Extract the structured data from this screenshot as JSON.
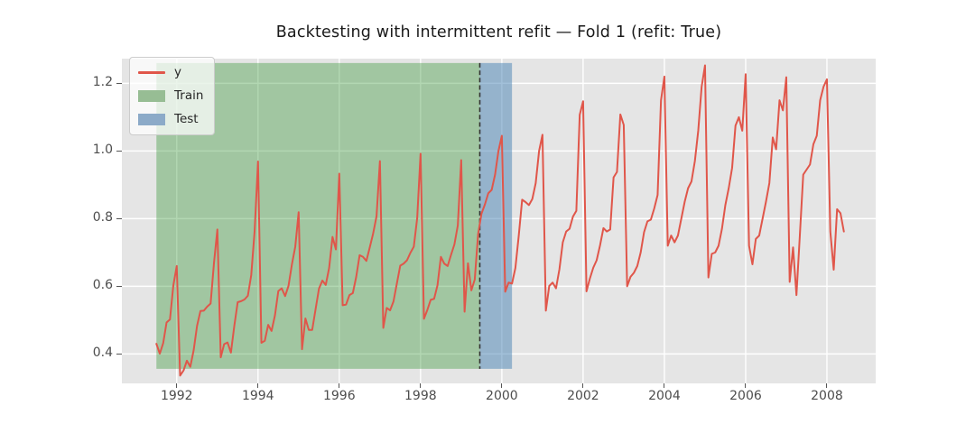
{
  "chart_data": {
    "type": "line",
    "title": "Backtesting with intermittent refit — Fold 1 (refit: True)",
    "x_axis": {
      "tick_labels": [
        "1992",
        "1994",
        "1996",
        "1998",
        "2000",
        "2002",
        "2004",
        "2006",
        "2008"
      ],
      "lim": [
        1990.65,
        2009.2
      ],
      "unit": "year"
    },
    "y_axis": {
      "tick_labels": [
        "0.4",
        "0.6",
        "0.8",
        "1.0",
        "1.2"
      ],
      "lim": [
        0.313,
        1.273
      ]
    },
    "grid": true,
    "legend_position": "upper-left",
    "series": [
      {
        "name": "y",
        "color": "#e0564a",
        "start": "1991-07",
        "freq": "monthly",
        "values": [
          0.43,
          0.401,
          0.432,
          0.493,
          0.502,
          0.603,
          0.66,
          0.336,
          0.351,
          0.38,
          0.362,
          0.411,
          0.483,
          0.527,
          0.528,
          0.54,
          0.549,
          0.669,
          0.768,
          0.39,
          0.429,
          0.434,
          0.404,
          0.483,
          0.553,
          0.556,
          0.561,
          0.572,
          0.633,
          0.763,
          0.969,
          0.433,
          0.439,
          0.486,
          0.468,
          0.514,
          0.586,
          0.594,
          0.571,
          0.601,
          0.664,
          0.717,
          0.819,
          0.414,
          0.505,
          0.471,
          0.471,
          0.532,
          0.593,
          0.617,
          0.604,
          0.654,
          0.746,
          0.709,
          0.933,
          0.544,
          0.546,
          0.574,
          0.58,
          0.628,
          0.692,
          0.687,
          0.675,
          0.715,
          0.756,
          0.807,
          0.97,
          0.477,
          0.536,
          0.529,
          0.555,
          0.608,
          0.661,
          0.667,
          0.677,
          0.699,
          0.717,
          0.801,
          0.992,
          0.504,
          0.53,
          0.56,
          0.563,
          0.603,
          0.687,
          0.667,
          0.66,
          0.693,
          0.724,
          0.78,
          0.973,
          0.525,
          0.668,
          0.588,
          0.62,
          0.755,
          0.815,
          0.842,
          0.875,
          0.885,
          0.93,
          1.0,
          1.045,
          0.584,
          0.611,
          0.608,
          0.654,
          0.75,
          0.856,
          0.849,
          0.84,
          0.858,
          0.905,
          1.0,
          1.048,
          0.528,
          0.601,
          0.611,
          0.594,
          0.65,
          0.73,
          0.762,
          0.77,
          0.806,
          0.823,
          1.107,
          1.147,
          0.585,
          0.623,
          0.655,
          0.677,
          0.721,
          0.772,
          0.762,
          0.768,
          0.922,
          0.938,
          1.108,
          1.077,
          0.6,
          0.628,
          0.64,
          0.66,
          0.7,
          0.76,
          0.792,
          0.797,
          0.83,
          0.87,
          1.15,
          1.22,
          0.72,
          0.75,
          0.73,
          0.75,
          0.8,
          0.85,
          0.89,
          0.91,
          0.97,
          1.06,
          1.19,
          1.253,
          0.626,
          0.696,
          0.7,
          0.72,
          0.77,
          0.84,
          0.89,
          0.95,
          1.075,
          1.1,
          1.06,
          1.227,
          0.72,
          0.665,
          0.74,
          0.75,
          0.8,
          0.85,
          0.905,
          1.04,
          1.005,
          1.15,
          1.12,
          1.218,
          0.613,
          0.715,
          0.574,
          0.75,
          0.93,
          0.945,
          0.96,
          1.02,
          1.045,
          1.15,
          1.19,
          1.212,
          0.762,
          0.649,
          0.828,
          0.816,
          0.762
        ]
      }
    ],
    "regions": [
      {
        "name": "Train",
        "x_start": 1991.5,
        "x_end": 1999.458,
        "y_min": 0.356,
        "y_max": 1.26,
        "color": "#228b22",
        "alpha": 0.35
      },
      {
        "name": "Test",
        "x_start": 1999.458,
        "x_end": 2000.25,
        "y_min": 0.356,
        "y_max": 1.26,
        "color": "#4682b4",
        "alpha": 0.5
      }
    ],
    "refit_boundary": {
      "x": 1999.458,
      "style": "dashed",
      "color": "#333333",
      "y_min": 0.356,
      "y_max": 1.26
    },
    "legend": [
      {
        "label": "y",
        "swatch": "line",
        "color": "#e0564a"
      },
      {
        "label": "Train",
        "swatch": "patch",
        "color": "#97bd94"
      },
      {
        "label": "Test",
        "swatch": "patch",
        "color": "#8caac8"
      }
    ],
    "colors": {
      "figure_background": "#ffffff",
      "axes_background": "#e5e5e5",
      "gridline": "#ffffff",
      "tick_label": "#4d4d4d",
      "title": "#1a1a1a"
    }
  }
}
